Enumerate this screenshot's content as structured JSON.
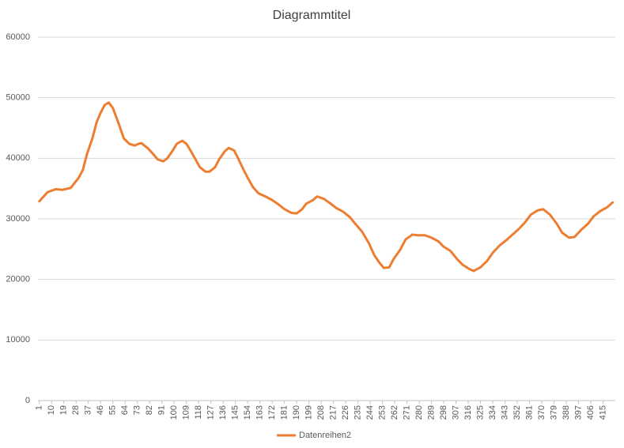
{
  "chart_data": {
    "type": "line",
    "title": "Diagrammtitel",
    "x": [
      1,
      7,
      13,
      18,
      24,
      30,
      33,
      36,
      40,
      43,
      46,
      49,
      52,
      55,
      59,
      63,
      67,
      71,
      74,
      76,
      81,
      85,
      88,
      92,
      95,
      99,
      102,
      106,
      109,
      112,
      116,
      119,
      123,
      126,
      130,
      133,
      137,
      140,
      144,
      147,
      151,
      154,
      158,
      162,
      167,
      172,
      176,
      181,
      186,
      190,
      194,
      197,
      202,
      205,
      210,
      215,
      219,
      224,
      229,
      233,
      238,
      243,
      247,
      251,
      254,
      258,
      261,
      266,
      270,
      275,
      279,
      284,
      289,
      294,
      298,
      303,
      308,
      312,
      317,
      320,
      325,
      330,
      334,
      339,
      344,
      348,
      353,
      358,
      362,
      367,
      371,
      376,
      381,
      385,
      390,
      394,
      399,
      404,
      408,
      413,
      418,
      422
    ],
    "series": [
      {
        "name": "Datenreihen2",
        "color": "#ed7d31",
        "values": [
          32900,
          34400,
          34900,
          34800,
          35100,
          36800,
          38100,
          40700,
          43300,
          45900,
          47500,
          48800,
          49200,
          48300,
          45900,
          43300,
          42400,
          42100,
          42400,
          42500,
          41600,
          40600,
          39800,
          39500,
          40000,
          41300,
          42400,
          42900,
          42400,
          41300,
          39700,
          38500,
          37800,
          37800,
          38500,
          39800,
          41100,
          41700,
          41300,
          40000,
          38100,
          36800,
          35200,
          34200,
          33700,
          33100,
          32500,
          31600,
          31000,
          30900,
          31600,
          32500,
          33100,
          33700,
          33300,
          32500,
          31800,
          31200,
          30300,
          29200,
          27900,
          26000,
          24000,
          22700,
          21900,
          22000,
          23300,
          24900,
          26600,
          27400,
          27300,
          27300,
          26900,
          26300,
          25400,
          24700,
          23300,
          22400,
          21700,
          21400,
          22000,
          23100,
          24400,
          25600,
          26500,
          27300,
          28300,
          29500,
          30700,
          31400,
          31600,
          30700,
          29200,
          27700,
          26900,
          27000,
          28200,
          29200,
          30400,
          31300,
          31900,
          32700
        ]
      }
    ],
    "xlim": [
      0,
      424
    ],
    "xticks": [
      1,
      10,
      19,
      28,
      37,
      46,
      55,
      64,
      73,
      82,
      91,
      100,
      109,
      118,
      127,
      136,
      145,
      154,
      163,
      172,
      181,
      190,
      199,
      208,
      217,
      226,
      235,
      244,
      253,
      262,
      271,
      280,
      289,
      298,
      307,
      316,
      325,
      334,
      343,
      352,
      361,
      370,
      379,
      388,
      397,
      406,
      415
    ],
    "ylim": [
      0,
      60000
    ],
    "yticks": [
      0,
      10000,
      20000,
      30000,
      40000,
      50000,
      60000
    ],
    "grid": true,
    "legend": "bottom"
  }
}
